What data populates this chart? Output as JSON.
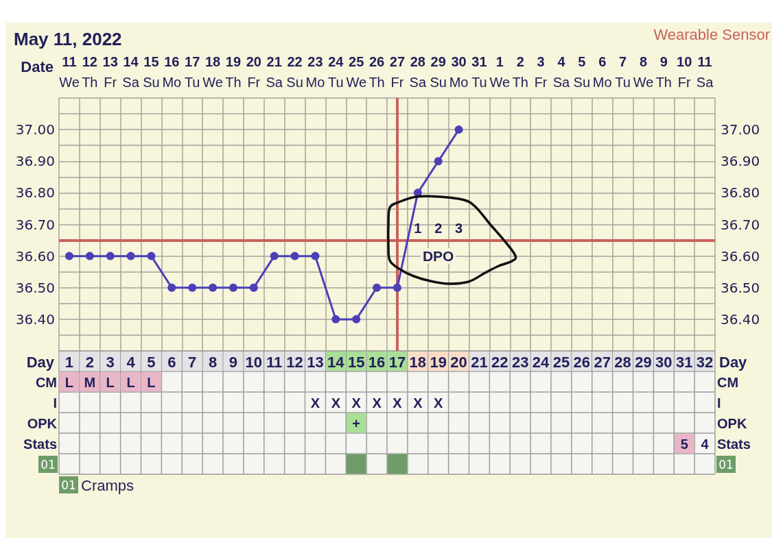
{
  "chart_data": {
    "type": "line",
    "title": "May 11, 2022",
    "annotations": [
      "Wearable Sensor",
      "Cramps",
      "1",
      "2",
      "3",
      "DPO"
    ],
    "xlabel": "Day",
    "x2label": "Date",
    "xlim": [
      0.5,
      32.5
    ],
    "xticks": [
      1,
      2,
      3,
      4,
      5,
      6,
      7,
      8,
      9,
      10,
      11,
      12,
      13,
      14,
      15,
      16,
      17,
      18,
      19,
      20,
      21,
      22,
      23,
      24,
      25,
      26,
      27,
      28,
      29,
      30,
      31,
      32
    ],
    "x2lim": [
      "2022-05-10T12:00",
      "2022-06-11T12:00"
    ],
    "x2ticks": [
      {
        "value": "2022-05-11",
        "label": "11\nWe"
      },
      {
        "value": "2022-05-12",
        "label": "12\nTh"
      },
      {
        "value": "2022-05-13",
        "label": "13\nFr"
      },
      {
        "value": "2022-05-14",
        "label": "14\nSa"
      },
      {
        "value": "2022-05-15",
        "label": "15\nSu"
      },
      {
        "value": "2022-05-16",
        "label": "16\nMo"
      },
      {
        "value": "2022-05-17",
        "label": "17\nTu"
      },
      {
        "value": "2022-05-18",
        "label": "18\nWe"
      },
      {
        "value": "2022-05-19",
        "label": "19\nTh"
      },
      {
        "value": "2022-05-20",
        "label": "20\nFr"
      },
      {
        "value": "2022-05-21",
        "label": "21\nSa"
      },
      {
        "value": "2022-05-22",
        "label": "22\nSu"
      },
      {
        "value": "2022-05-23",
        "label": "23\nMo"
      },
      {
        "value": "2022-05-24",
        "label": "24\nTu"
      },
      {
        "value": "2022-05-25",
        "label": "25\nWe"
      },
      {
        "value": "2022-05-26",
        "label": "26\nTh"
      },
      {
        "value": "2022-05-27",
        "label": "27\nFr"
      },
      {
        "value": "2022-05-28",
        "label": "28\nSa"
      },
      {
        "value": "2022-05-29",
        "label": "29\nSu"
      },
      {
        "value": "2022-05-30",
        "label": "30\nMo"
      },
      {
        "value": "2022-05-31",
        "label": "31\nTu"
      },
      {
        "value": "2022-06-01",
        "label": "1\nWe"
      },
      {
        "value": "2022-06-02",
        "label": "2\nTh"
      },
      {
        "value": "2022-06-03",
        "label": "3\nFr"
      },
      {
        "value": "2022-06-04",
        "label": "4\nSa"
      },
      {
        "value": "2022-06-05",
        "label": "5\nSu"
      },
      {
        "value": "2022-06-06",
        "label": "6\nMo"
      },
      {
        "value": "2022-06-07",
        "label": "7\nTu"
      },
      {
        "value": "2022-06-08",
        "label": "8\nWe"
      },
      {
        "value": "2022-06-09",
        "label": "9\nTh"
      },
      {
        "value": "2022-06-10",
        "label": "10\nFr"
      },
      {
        "value": "2022-06-11",
        "label": "11\nSa"
      }
    ],
    "ylim": [
      36.3,
      37.1
    ],
    "yticks": [
      {
        "value": 36.3,
        "label": null
      },
      {
        "value": 36.35,
        "label": null
      },
      {
        "value": 36.4,
        "label": "36.40"
      },
      {
        "value": 36.45,
        "label": null
      },
      {
        "value": 36.5,
        "label": "36.50"
      },
      {
        "value": 36.55,
        "label": null
      },
      {
        "value": 36.6,
        "label": "36.60"
      },
      {
        "value": 36.7,
        "label": "36.70"
      },
      {
        "value": 36.75,
        "label": null
      },
      {
        "value": 36.8,
        "label": "36.80"
      },
      {
        "value": 36.85,
        "label": null
      },
      {
        "value": 36.9,
        "label": "36.90"
      },
      {
        "value": 36.95,
        "label": null
      },
      {
        "value": 37.0,
        "label": "37.00"
      },
      {
        "value": 37.05,
        "label": null
      },
      {
        "value": 37.1,
        "label": null
      }
    ],
    "y2lim": [
      36.3,
      37.1
    ],
    "y2ticks": [
      {
        "value": 36.4,
        "label": "36.40"
      },
      {
        "value": 36.5,
        "label": "36.50"
      },
      {
        "value": 36.6,
        "label": "36.60"
      },
      {
        "value": 36.7,
        "label": "36.70"
      },
      {
        "value": 36.8,
        "label": "36.80"
      },
      {
        "value": 36.9,
        "label": "36.90"
      },
      {
        "value": 37.0,
        "label": "37.00"
      }
    ],
    "grid": true,
    "marker": "circle",
    "line_style": "solid",
    "series": [
      {
        "color": "#4b3fb8",
        "x": [
          1,
          2,
          3,
          4,
          5,
          6,
          7,
          8,
          9,
          10,
          11,
          12,
          13,
          14,
          15,
          16,
          17,
          18,
          19,
          20
        ],
        "values": [
          36.6,
          36.6,
          36.6,
          36.6,
          36.6,
          36.5,
          36.5,
          36.5,
          36.5,
          36.5,
          36.6,
          36.6,
          36.6,
          36.4,
          36.4,
          36.5,
          36.5,
          36.8,
          36.9,
          37.0
        ]
      }
    ],
    "ref_lines": [
      {
        "axis": "y",
        "value": 36.65,
        "color": "#c9625c"
      },
      {
        "axis": "x",
        "value": 17,
        "color": "#c9625c"
      }
    ],
    "y_categories": [
      null,
      "CM",
      "I",
      "OPK",
      "Stats",
      "01"
    ],
    "y2_categories": [
      null,
      "CM",
      "I",
      "OPK",
      "Stats",
      "01"
    ],
    "cell_labels": [
      [
        null,
        null,
        null,
        null,
        null,
        null,
        null,
        null,
        null,
        null,
        null,
        null,
        null,
        null,
        null,
        null,
        null,
        null,
        null,
        null,
        null,
        null,
        null,
        null,
        null,
        null,
        null,
        null,
        null,
        null,
        null,
        null
      ],
      [
        "L",
        "M",
        "L",
        "L",
        "L",
        null,
        null,
        null,
        null,
        null,
        null,
        null,
        null,
        null,
        null,
        null,
        null,
        null,
        null,
        null,
        null,
        null,
        null,
        null,
        null,
        null,
        null,
        null,
        null,
        null,
        null,
        null
      ],
      [
        null,
        null,
        null,
        null,
        null,
        null,
        null,
        null,
        null,
        null,
        null,
        null,
        "X",
        "X",
        "X",
        "X",
        "X",
        "X",
        "X",
        null,
        null,
        null,
        null,
        null,
        null,
        null,
        null,
        null,
        null,
        null,
        null,
        null
      ],
      [
        null,
        null,
        null,
        null,
        null,
        null,
        null,
        null,
        null,
        null,
        null,
        null,
        null,
        null,
        "+",
        null,
        null,
        null,
        null,
        null,
        null,
        null,
        null,
        null,
        null,
        null,
        null,
        null,
        null,
        null,
        null,
        null
      ],
      [
        null,
        null,
        null,
        null,
        null,
        null,
        null,
        null,
        null,
        null,
        null,
        null,
        null,
        null,
        null,
        null,
        null,
        null,
        null,
        null,
        null,
        null,
        null,
        null,
        null,
        null,
        null,
        null,
        null,
        null,
        "5",
        "4"
      ],
      [
        null,
        null,
        null,
        null,
        null,
        null,
        null,
        null,
        null,
        null,
        null,
        null,
        null,
        null,
        null,
        null,
        null,
        null,
        null,
        null,
        null,
        null,
        null,
        null,
        null,
        null,
        null,
        null,
        null,
        null,
        null,
        null
      ]
    ],
    "colors": [
      [
        "#e3e3e6",
        "#e3e3e6",
        "#e3e3e6",
        "#e3e3e6",
        "#e3e3e6",
        "#e3e3e6",
        "#e3e3e6",
        "#e3e3e6",
        "#e3e3e6",
        "#e3e3e6",
        "#e3e3e6",
        "#e3e3e6",
        "#e3e3e6",
        "#a9df96",
        "#a9df96",
        "#a9df96",
        "#a9df96",
        "#fadcc6",
        "#fadcc6",
        "#fadcc6",
        "#e3e3e6",
        "#e3e3e6",
        "#e3e3e6",
        "#e3e3e6",
        "#e3e3e6",
        "#e3e3e6",
        "#e3e3e6",
        "#e3e3e6",
        "#e3e3e6",
        "#e3e3e6",
        "#e3e3e6",
        "#e3e3e6"
      ],
      [
        "#e9b6c8",
        "#e9b6c8",
        "#e9b6c8",
        "#e9b6c8",
        "#e9b6c8",
        null,
        null,
        null,
        null,
        null,
        null,
        null,
        null,
        null,
        null,
        null,
        null,
        null,
        null,
        null,
        null,
        null,
        null,
        null,
        null,
        null,
        null,
        null,
        null,
        null,
        null,
        null
      ],
      [
        null,
        null,
        null,
        null,
        null,
        null,
        null,
        null,
        null,
        null,
        null,
        null,
        null,
        null,
        null,
        null,
        null,
        null,
        null,
        null,
        null,
        null,
        null,
        null,
        null,
        null,
        null,
        null,
        null,
        null,
        null,
        null
      ],
      [
        null,
        null,
        null,
        null,
        null,
        null,
        null,
        null,
        null,
        null,
        null,
        null,
        null,
        null,
        "#a9df96",
        null,
        null,
        null,
        null,
        null,
        null,
        null,
        null,
        null,
        null,
        null,
        null,
        null,
        null,
        null,
        null,
        null
      ],
      [
        null,
        null,
        null,
        null,
        null,
        null,
        null,
        null,
        null,
        null,
        null,
        null,
        null,
        null,
        null,
        null,
        null,
        null,
        null,
        null,
        null,
        null,
        null,
        null,
        null,
        null,
        null,
        null,
        null,
        null,
        "#e9b6c8",
        null
      ],
      [
        null,
        null,
        null,
        null,
        null,
        null,
        null,
        null,
        null,
        null,
        null,
        null,
        null,
        null,
        "#6e9c68",
        null,
        "#6e9c68",
        null,
        null,
        null,
        null,
        null,
        null,
        null,
        null,
        null,
        null,
        null,
        null,
        null,
        null,
        null
      ]
    ]
  }
}
